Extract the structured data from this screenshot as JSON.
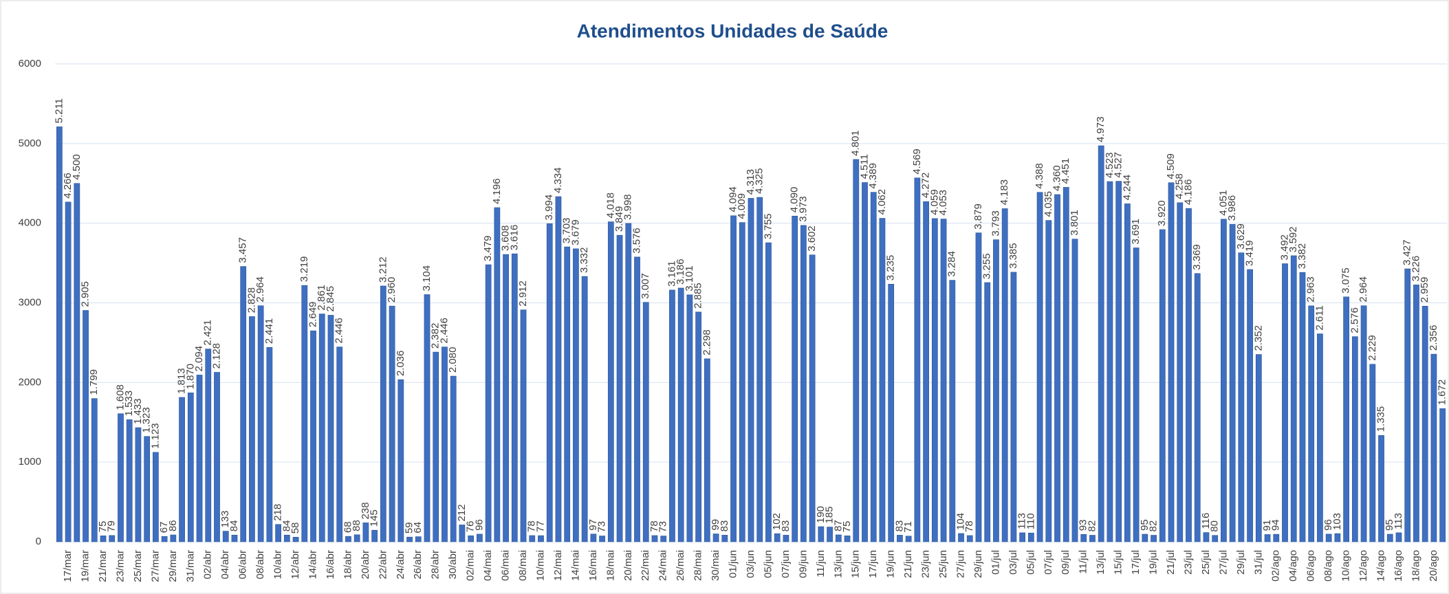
{
  "chart_data": {
    "type": "bar",
    "title": "Atendimentos Unidades de Saúde",
    "categories": [
      null,
      "17/mar",
      null,
      "19/mar",
      null,
      "21/mar",
      null,
      "23/mar",
      null,
      "25/mar",
      null,
      "27/mar",
      null,
      "29/mar",
      null,
      "31/mar",
      null,
      "02/abr",
      null,
      "04/abr",
      null,
      "06/abr",
      null,
      "08/abr",
      null,
      "10/abr",
      null,
      "12/abr",
      null,
      "14/abr",
      null,
      "16/abr",
      null,
      "18/abr",
      null,
      "20/abr",
      null,
      "22/abr",
      null,
      "24/abr",
      null,
      "26/abr",
      null,
      "28/abr",
      null,
      "30/abr",
      null,
      "02/mai",
      null,
      "04/mai",
      null,
      "06/mai",
      null,
      "08/mai",
      null,
      "10/mai",
      null,
      "12/mai",
      null,
      "14/mai",
      null,
      "16/mai",
      null,
      "18/mai",
      null,
      "20/mai",
      null,
      "22/mai",
      null,
      "24/mai",
      null,
      "26/mai",
      null,
      "28/mai",
      null,
      "30/mai",
      null,
      "01/jun",
      null,
      "03/jun",
      null,
      "05/jun",
      null,
      "07/jun",
      null,
      "09/jun",
      null,
      "11/jun",
      null,
      "13/jun",
      null,
      "15/jun",
      null,
      "17/jun",
      null,
      "19/jun",
      null,
      "21/jun",
      null,
      "23/jun",
      null,
      "25/jun",
      null,
      "27/jun",
      null,
      "29/jun",
      null,
      "01/jul",
      null,
      "03/jul",
      null,
      "05/jul",
      null,
      "07/jul",
      null,
      "09/jul",
      null,
      "11/jul",
      null,
      "13/jul",
      null,
      "15/jul",
      null,
      "17/jul",
      null,
      "19/jul",
      null,
      "21/jul",
      null,
      "23/jul",
      null,
      "25/jul",
      null,
      "27/jul",
      null,
      "29/jul",
      null,
      "31/jul",
      null,
      "02/ago",
      null,
      "04/ago",
      null,
      "06/ago",
      null,
      "08/ago",
      null,
      "10/ago",
      null,
      "12/ago",
      null,
      "14/ago",
      null,
      "16/ago",
      null,
      "18/ago",
      null,
      "20/ago",
      null
    ],
    "values": [
      5211,
      4266,
      4500,
      2905,
      1799,
      75,
      79,
      1608,
      1533,
      1433,
      1323,
      1123,
      67,
      86,
      1813,
      1870,
      2094,
      2421,
      2128,
      133,
      84,
      3457,
      2828,
      2964,
      2441,
      218,
      84,
      58,
      3219,
      2649,
      2861,
      2845,
      2446,
      68,
      88,
      238,
      145,
      3212,
      2960,
      2036,
      59,
      64,
      3104,
      2382,
      2446,
      2080,
      212,
      76,
      96,
      3479,
      4196,
      3608,
      3616,
      2912,
      78,
      77,
      3994,
      4334,
      3703,
      3679,
      3332,
      97,
      73,
      4018,
      3849,
      3998,
      3576,
      3007,
      78,
      73,
      3161,
      3186,
      3101,
      2885,
      2298,
      99,
      83,
      4094,
      4009,
      4313,
      4325,
      3755,
      102,
      83,
      4090,
      3973,
      3602,
      190,
      185,
      87,
      75,
      4801,
      4511,
      4389,
      4062,
      3235,
      83,
      71,
      4569,
      4272,
      4059,
      4053,
      3284,
      104,
      78,
      3879,
      3255,
      3793,
      4183,
      3385,
      113,
      110,
      4388,
      4035,
      4360,
      4451,
      3801,
      93,
      82,
      4973,
      4523,
      4527,
      4244,
      3691,
      95,
      82,
      3920,
      4509,
      4258,
      4186,
      3369,
      116,
      80,
      4051,
      3986,
      3629,
      3419,
      2352,
      91,
      94,
      3492,
      3592,
      3382,
      2963,
      2611,
      96,
      103,
      3075,
      2576,
      2964,
      2229,
      1335,
      95,
      113,
      3427,
      3226,
      2959,
      2356,
      1672
    ],
    "value_labels": [
      "5.211",
      "4.266",
      "4.500",
      "2.905",
      "1.799",
      "75",
      "79",
      "1.608",
      "1.533",
      "1.433",
      "1.323",
      "1.123",
      "67",
      "86",
      "1.813",
      "1.870",
      "2.094",
      "2.421",
      "2.128",
      "133",
      "84",
      "3.457",
      "2.828",
      "2.964",
      "2.441",
      "218",
      "84",
      "58",
      "3.219",
      "2.649",
      "2.861",
      "2.845",
      "2.446",
      "68",
      "88",
      "238",
      "145",
      "3.212",
      "2.960",
      "2.036",
      "59",
      "64",
      "3.104",
      "2.382",
      "2.446",
      "2.080",
      "212",
      "76",
      "96",
      "3.479",
      "4.196",
      "3.608",
      "3.616",
      "2.912",
      "78",
      "77",
      "3.994",
      "4.334",
      "3.703",
      "3.679",
      "3.332",
      "97",
      "73",
      "4.018",
      "3.849",
      "3.998",
      "3.576",
      "3.007",
      "78",
      "73",
      "3.161",
      "3.186",
      "3.101",
      "2.885",
      "2.298",
      "99",
      "83",
      "4.094",
      "4.009",
      "4.313",
      "4.325",
      "3.755",
      "102",
      "83",
      "4.090",
      "3.973",
      "3.602",
      "190",
      "185",
      "87",
      "75",
      "4.801",
      "4.511",
      "4.389",
      "4.062",
      "3.235",
      "83",
      "71",
      "4.569",
      "4.272",
      "4.059",
      "4.053",
      "3.284",
      "104",
      "78",
      "3.879",
      "3.255",
      "3.793",
      "4.183",
      "3.385",
      "113",
      "110",
      "4.388",
      "4.035",
      "4.360",
      "4.451",
      "3.801",
      "93",
      "82",
      "4.973",
      "4.523",
      "4.527",
      "4.244",
      "3.691",
      "95",
      "82",
      "3.920",
      "4.509",
      "4.258",
      "4.186",
      "3.369",
      "116",
      "80",
      "4.051",
      "3.986",
      "3.629",
      "3.419",
      "2.352",
      "91",
      "94",
      "3.492",
      "3.592",
      "3.382",
      "2.963",
      "2.611",
      "96",
      "103",
      "3.075",
      "2.576",
      "2.964",
      "2.229",
      "1.335",
      "95",
      "113",
      "3.427",
      "3.226",
      "2.959",
      "2.356",
      "1.672"
    ],
    "color": "#3f6fc0",
    "ylim": [
      0,
      6000
    ],
    "yticks": [
      0,
      1000,
      2000,
      3000,
      4000,
      5000,
      6000
    ],
    "grid": true
  }
}
